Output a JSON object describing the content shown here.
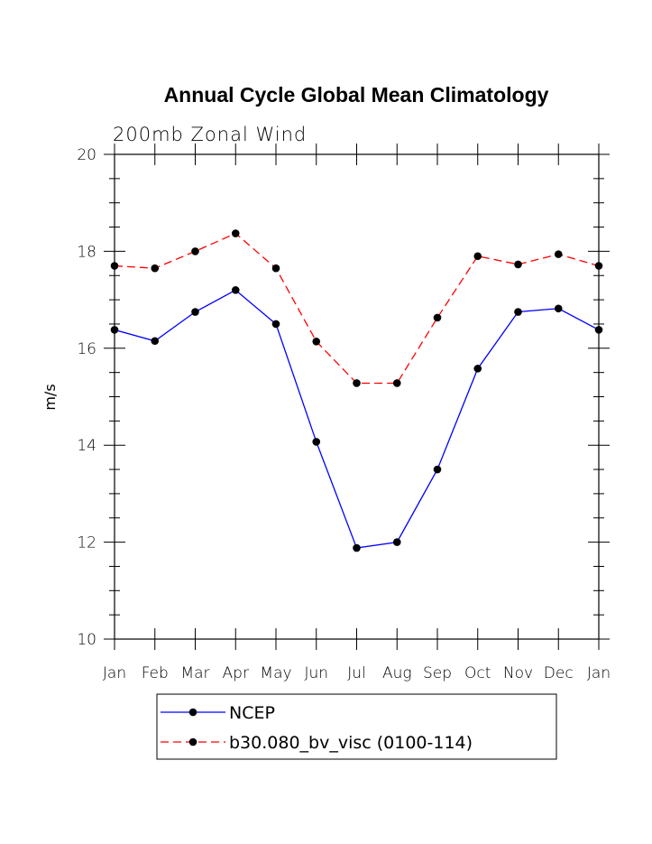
{
  "chart_data": {
    "type": "line",
    "title": "Annual Cycle Global Mean Climatology",
    "subtitle": "200mb Zonal Wind",
    "xlabel": "",
    "ylabel": "m/s",
    "categories": [
      "Jan",
      "Feb",
      "Mar",
      "Apr",
      "May",
      "Jun",
      "Jul",
      "Aug",
      "Sep",
      "Oct",
      "Nov",
      "Dec",
      "Jan"
    ],
    "ylim": [
      10,
      20
    ],
    "yticks": [
      "10",
      "12",
      "14",
      "16",
      "18",
      "20"
    ],
    "grid": false,
    "legend_position": "bottom",
    "series": [
      {
        "name": "NCEP",
        "color": "#0000ff",
        "dash": "solid",
        "marker": "filled-circle",
        "values": [
          16.38,
          16.15,
          16.75,
          17.2,
          16.5,
          14.07,
          11.88,
          12.0,
          13.5,
          15.58,
          16.75,
          16.82,
          16.38
        ]
      },
      {
        "name": "b30.080_bv_visc (0100-114)",
        "color": "#ff0000",
        "dash": "dashed",
        "marker": "filled-circle",
        "values": [
          17.7,
          17.65,
          18.0,
          18.37,
          17.65,
          16.14,
          15.28,
          15.28,
          16.63,
          17.9,
          17.73,
          17.94,
          17.7
        ]
      }
    ]
  }
}
